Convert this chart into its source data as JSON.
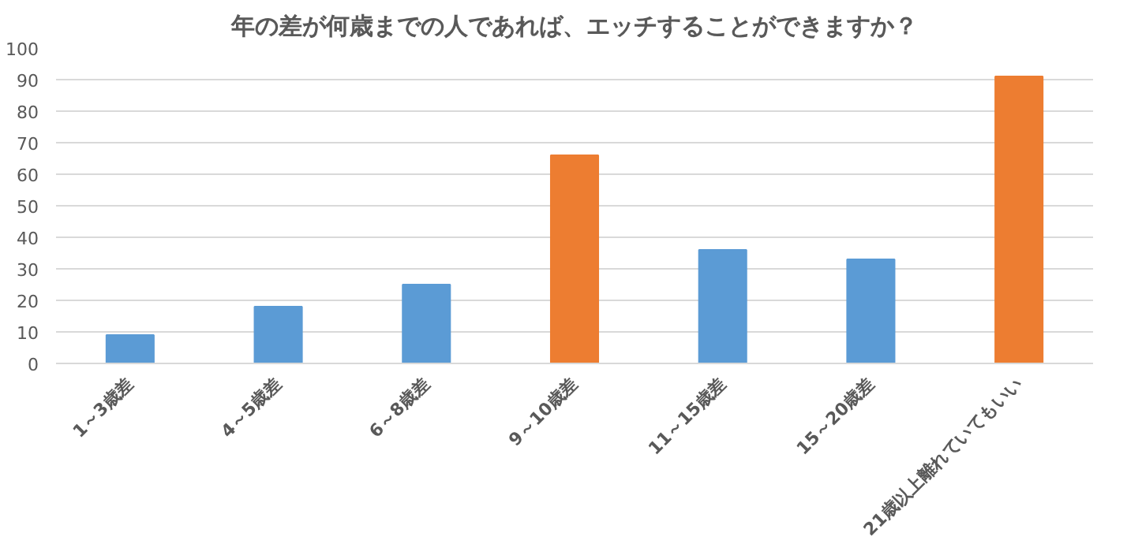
{
  "chart_data": {
    "type": "bar",
    "title": "年の差が何歳までの人であれば、エッチすることができますか？",
    "categories": [
      "1～3歳差",
      "4～5歳差",
      "6～8歳差",
      "9～10歳差",
      "11～15歳差",
      "15～20歳差",
      "21歳以上離れていてもいい"
    ],
    "values": [
      9,
      18,
      25,
      66,
      36,
      33,
      91
    ],
    "colors": [
      "#5b9bd5",
      "#5b9bd5",
      "#5b9bd5",
      "#ed7d31",
      "#5b9bd5",
      "#5b9bd5",
      "#ed7d31"
    ],
    "ylim": [
      0,
      100
    ],
    "yticks": [
      0,
      10,
      20,
      30,
      40,
      50,
      60,
      70,
      80,
      90,
      100
    ],
    "grid": "y"
  }
}
